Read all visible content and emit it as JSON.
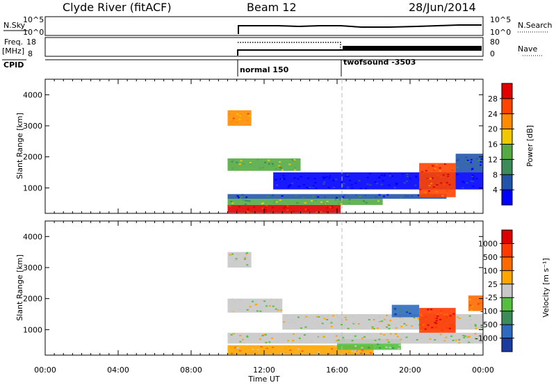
{
  "header": {
    "station": "Clyde River (fitACF)",
    "beam": "Beam 12",
    "date": "28/Jun/2014"
  },
  "top_panels": {
    "nsky_label": "N.Sky",
    "nsky_ticks": [
      "10^5",
      "10^0"
    ],
    "nsearch_label": "N.Search",
    "nsearch_ticks": [
      "10^5",
      "10^0"
    ],
    "freq_label_1": "Freq.",
    "freq_label_2": "[MHz]",
    "freq_ticks": [
      "18",
      "8"
    ],
    "nave_label": "Nave",
    "nave_ticks": [
      "80",
      "0"
    ],
    "cpid_label": "CPID",
    "modes": [
      {
        "name": "normal 150",
        "start_hour": 10.0
      },
      {
        "name": "twofsound -3503",
        "start_hour": 16.0
      }
    ]
  },
  "colors": {
    "power": [
      "#0000ff",
      "#2255aa",
      "#3c8c5a",
      "#55aa44",
      "#f0c800",
      "#ff8c00",
      "#ff4400",
      "#e00000"
    ],
    "velocity": [
      "#1a3c9e",
      "#2e6bbf",
      "#3c8c5a",
      "#55c040",
      "#c8c8c8",
      "#ffa500",
      "#ff6a00",
      "#ff3a00",
      "#dd0000"
    ],
    "background": "#ffffff",
    "dashed_line": "#bbbbbb"
  },
  "chart_data": [
    {
      "type": "heatmap",
      "name": "power-panel",
      "ylabel": "Slant Range [km]",
      "x_range_hours": [
        0,
        24
      ],
      "ylim": [
        180,
        4500
      ],
      "yticks": [
        1000,
        2000,
        3000,
        4000
      ],
      "colorbar_label": "Power [dB]",
      "colorbar_ticks": [
        "4",
        "8",
        "12",
        "16",
        "20",
        "24",
        "28"
      ],
      "data_start_hour": 10.0,
      "mode_change_hour": 16.0,
      "bands": [
        {
          "x_start": 10.0,
          "x_end": 16.2,
          "y_start": 200,
          "y_end": 450,
          "level": 7
        },
        {
          "x_start": 10.0,
          "x_end": 18.5,
          "y_start": 450,
          "y_end": 650,
          "level": 3
        },
        {
          "x_start": 10.0,
          "x_end": 22.0,
          "y_start": 650,
          "y_end": 800,
          "level": 1
        },
        {
          "x_start": 10.0,
          "x_end": 14.0,
          "y_start": 1550,
          "y_end": 1950,
          "level": 3
        },
        {
          "x_start": 12.5,
          "x_end": 24.0,
          "y_start": 950,
          "y_end": 1500,
          "level": 0
        },
        {
          "x_start": 20.5,
          "x_end": 22.5,
          "y_start": 700,
          "y_end": 1800,
          "level": 6
        },
        {
          "x_start": 22.5,
          "x_end": 24.0,
          "y_start": 1500,
          "y_end": 2100,
          "level": 1
        },
        {
          "x_start": 10.0,
          "x_end": 11.3,
          "y_start": 3000,
          "y_end": 3500,
          "level": 5
        }
      ]
    },
    {
      "type": "heatmap",
      "name": "velocity-panel",
      "ylabel": "Slant Range [km]",
      "xlabel": "Time UT",
      "x_range_hours": [
        0,
        24
      ],
      "xticks": [
        "00:00",
        "04:00",
        "08:00",
        "12:00",
        "16:00",
        "20:00",
        "00:00"
      ],
      "ylim": [
        180,
        4500
      ],
      "yticks": [
        1000,
        2000,
        3000,
        4000
      ],
      "colorbar_label": "Velocity [m s⁻¹]",
      "colorbar_ticks": [
        "1000",
        "500",
        "100",
        "25",
        "-25",
        "-100",
        "-500",
        "-1000"
      ],
      "data_start_hour": 10.0,
      "mode_change_hour": 16.0,
      "bands": [
        {
          "x_start": 10.0,
          "x_end": 18.0,
          "y_start": 200,
          "y_end": 500,
          "level": 5
        },
        {
          "x_start": 16.0,
          "x_end": 19.5,
          "y_start": 350,
          "y_end": 700,
          "level": 3
        },
        {
          "x_start": 10.0,
          "x_end": 24.0,
          "y_start": 550,
          "y_end": 900,
          "level": 4
        },
        {
          "x_start": 10.0,
          "x_end": 13.0,
          "y_start": 1550,
          "y_end": 2000,
          "level": 4
        },
        {
          "x_start": 13.0,
          "x_end": 24.0,
          "y_start": 1000,
          "y_end": 1500,
          "level": 4
        },
        {
          "x_start": 20.5,
          "x_end": 22.5,
          "y_start": 900,
          "y_end": 1700,
          "level": 7
        },
        {
          "x_start": 19.0,
          "x_end": 20.5,
          "y_start": 1400,
          "y_end": 1800,
          "level": 1
        },
        {
          "x_start": 23.2,
          "x_end": 24.0,
          "y_start": 1600,
          "y_end": 2100,
          "level": 6
        },
        {
          "x_start": 10.0,
          "x_end": 11.3,
          "y_start": 3000,
          "y_end": 3500,
          "level": 4
        }
      ]
    }
  ]
}
